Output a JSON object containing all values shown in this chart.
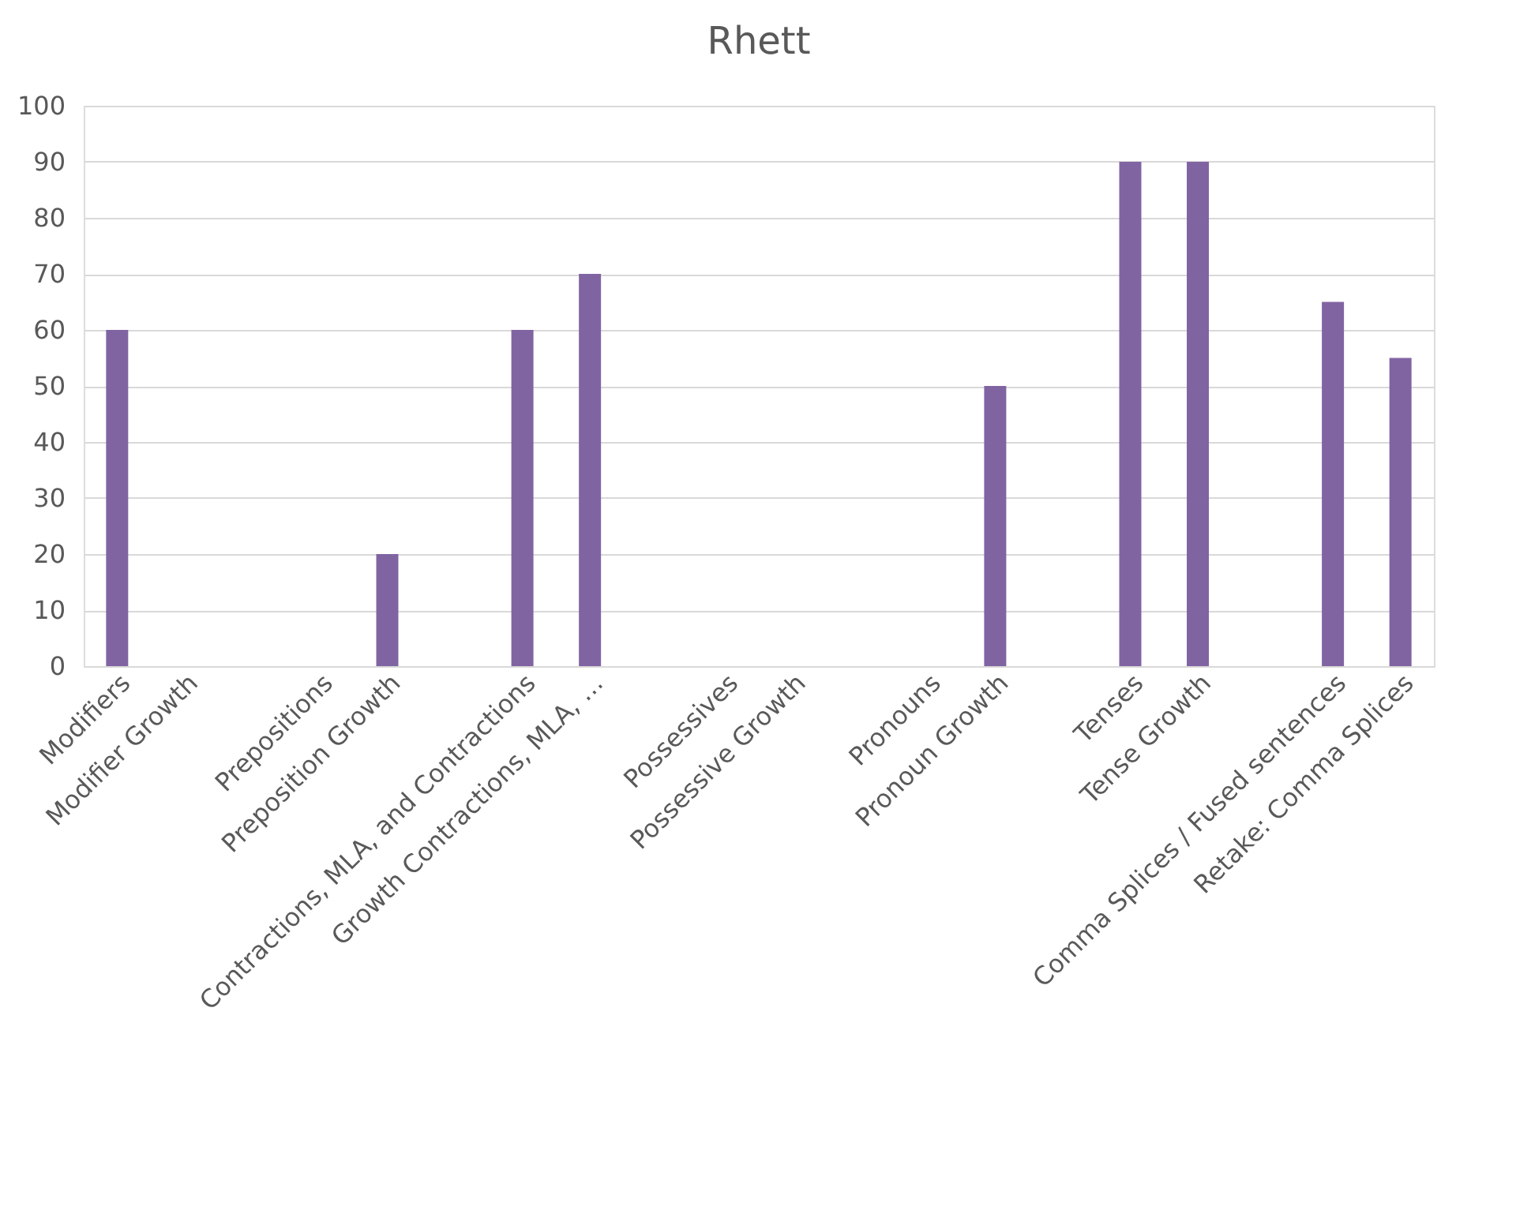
{
  "chart_data": {
    "type": "bar",
    "title": "Rhett",
    "categories": [
      "Modifiers",
      "Modifier Growth",
      null,
      "Prepositions",
      "Preposition Growth",
      null,
      "Contractions, MLA, and Contractions",
      "Growth Contractions, MLA, …",
      null,
      "Possessives",
      "Possessive Growth",
      null,
      "Pronouns",
      "Pronoun Growth",
      null,
      "Tenses",
      "Tense Growth",
      null,
      "Comma Splices / Fused sentences",
      "Retake: Comma Splices"
    ],
    "values": [
      60,
      null,
      null,
      null,
      20,
      null,
      60,
      70,
      null,
      null,
      null,
      null,
      null,
      50,
      null,
      90,
      90,
      null,
      65,
      55
    ],
    "color": "#8064a2",
    "ylim": [
      0,
      100
    ],
    "yticks": [
      0,
      10,
      20,
      30,
      40,
      50,
      60,
      70,
      80,
      90,
      100
    ],
    "grid": "y"
  }
}
